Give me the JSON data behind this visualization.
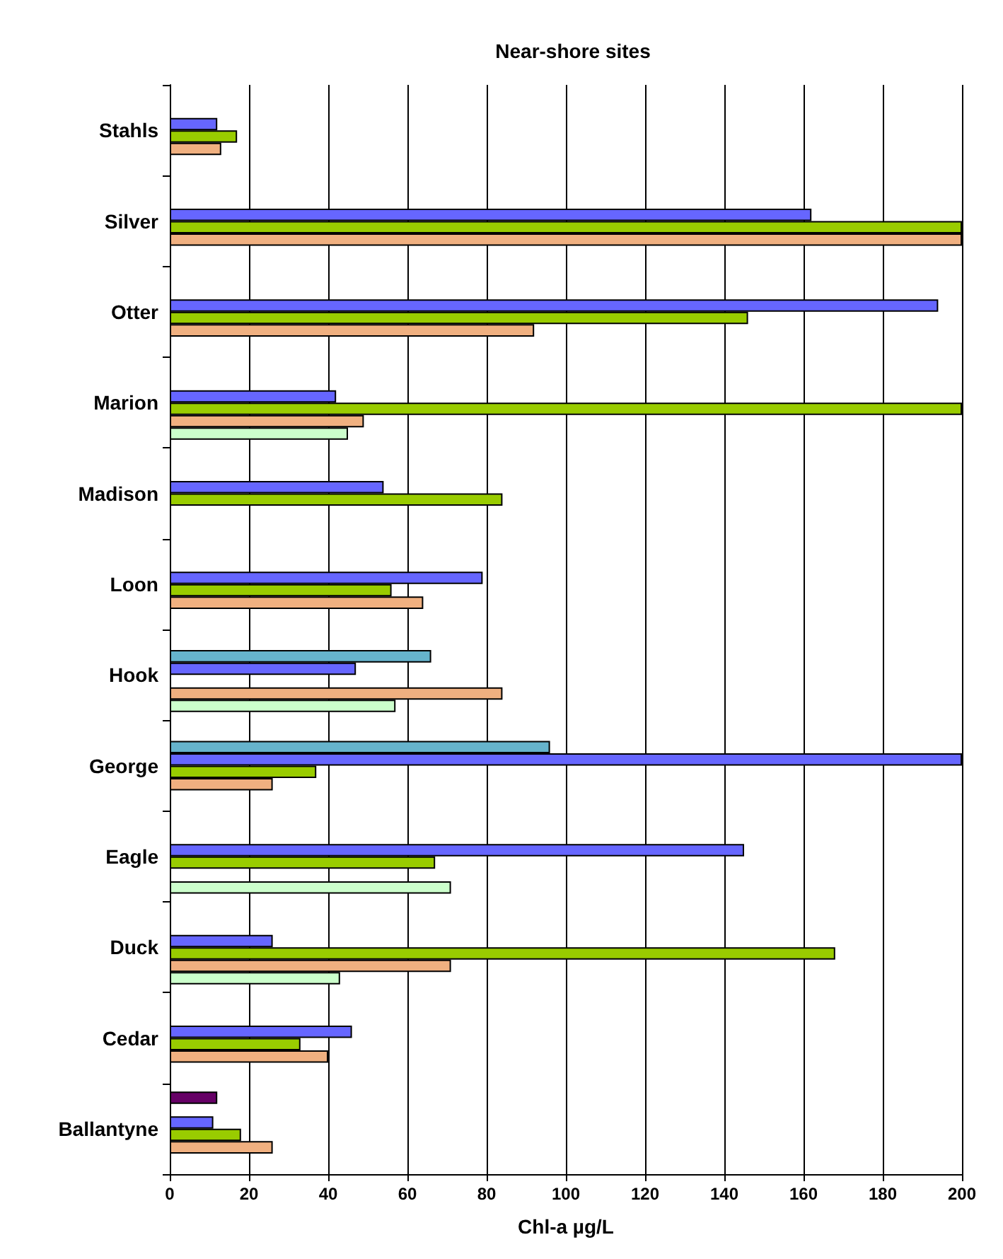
{
  "chart_data": {
    "type": "bar",
    "orientation": "horizontal",
    "title": "Near-shore sites",
    "xlabel": "Chl-a µg/L",
    "categories": [
      "Stahls",
      "Silver",
      "Otter",
      "Marion",
      "Madison",
      "Loon",
      "Hook",
      "George",
      "Eagle",
      "Duck",
      "Cedar",
      "Ballantyne"
    ],
    "series": [
      {
        "color": "#660066",
        "values": [
          null,
          null,
          null,
          null,
          null,
          null,
          null,
          null,
          null,
          null,
          null,
          12
        ]
      },
      {
        "color": "#66b3cc",
        "values": [
          null,
          null,
          null,
          null,
          null,
          null,
          66,
          96,
          null,
          null,
          null,
          null
        ]
      },
      {
        "color": "#6666ff",
        "values": [
          12,
          162,
          194,
          42,
          54,
          79,
          47,
          200,
          145,
          26,
          46,
          11
        ]
      },
      {
        "color": "#99cc00",
        "values": [
          17,
          200,
          146,
          200,
          84,
          56,
          null,
          37,
          67,
          168,
          33,
          18
        ]
      },
      {
        "color": "#f0b080",
        "values": [
          13,
          200,
          92,
          49,
          null,
          64,
          84,
          26,
          null,
          71,
          40,
          26
        ]
      },
      {
        "color": "#ccffcc",
        "values": [
          null,
          null,
          null,
          45,
          null,
          null,
          57,
          null,
          71,
          43,
          null,
          null
        ]
      }
    ],
    "xlim": [
      0,
      200
    ],
    "xticks": [
      0,
      20,
      40,
      60,
      80,
      100,
      120,
      140,
      160,
      180,
      200
    ],
    "grid": "x"
  }
}
